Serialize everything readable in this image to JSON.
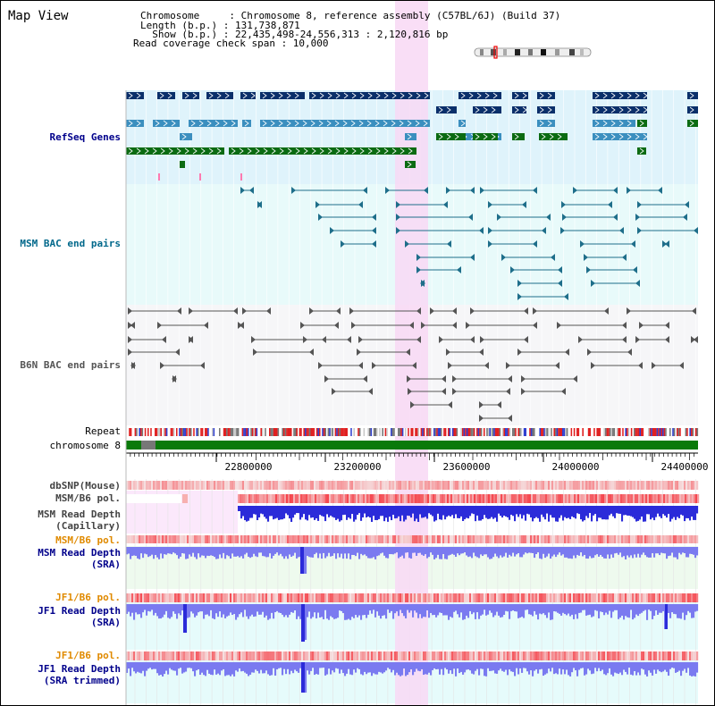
{
  "view_title": "Map View",
  "header": {
    "lines": [
      "Chromosome     : Chromosome 8, reference assembly (C57BL/6J) (Build 37)",
      "Length (b.p.) : 131,738,871",
      "  Show (b.p.) : 22,435,498-24,556,313 : 2,120,816 bp",
      "Read coverage check span : 10,000"
    ]
  },
  "tracks": {
    "refseq_genes": "RefSeq Genes",
    "msm_bac": "MSM BAC end pairs",
    "b6n_bac": "B6N BAC end pairs",
    "repeat": "Repeat",
    "chromosome": "chromosome 8",
    "dbsnp": "dbSNP(Mouse)",
    "msm_b6_pol_1": "MSM/B6 pol.",
    "msm_read_depth_cap": "MSM Read Depth\n(Capillary)",
    "msm_b6_pol_2": "MSM/B6 pol.",
    "msm_read_depth_sra": "MSM Read Depth\n(SRA)",
    "jf1_b6_pol_1": "JF1/B6 pol.",
    "jf1_read_depth_sra": "JF1 Read Depth\n(SRA)",
    "jf1_b6_pol_2": "JF1/B6 pol.",
    "jf1_read_depth_trim": "JF1 Read Depth\n(SRA trimmed)"
  },
  "axis": {
    "ticks": [
      "22800000",
      "23200000",
      "23600000",
      "24000000",
      "24400000"
    ]
  },
  "colors": {
    "gene_dark": "#0a2f6a",
    "gene_mid": "#3b8fbf",
    "gene_green": "#0b6b12",
    "msm_pair": "#1e6e8a",
    "b6n_pair": "#555555",
    "highlight": "#f8d8f4",
    "depth_blue": "#2b2bd9",
    "depth_light": "#7a7af0",
    "label_navy": "#00008b",
    "label_orange": "#e08a00",
    "label_teal": "#00688b"
  }
}
